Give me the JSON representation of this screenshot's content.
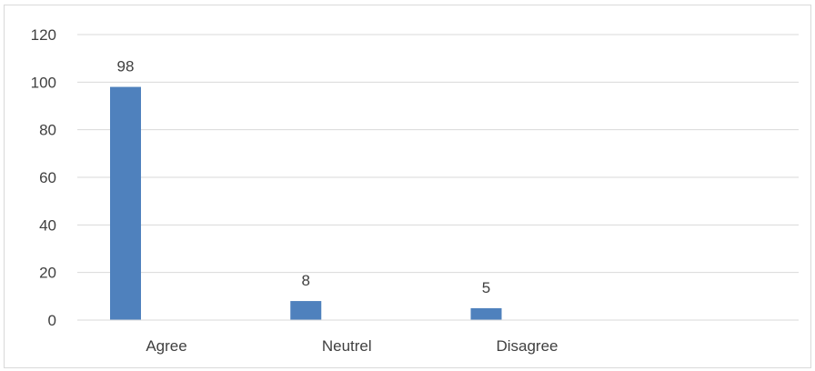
{
  "chart_data": {
    "type": "bar",
    "title": "",
    "xlabel": "",
    "ylabel": "",
    "categories": [
      "Agree",
      "Neutrel",
      "Disagree",
      ""
    ],
    "values": [
      98,
      8,
      5,
      null
    ],
    "data_labels": [
      "98",
      "8",
      "5",
      ""
    ],
    "ylim": [
      0,
      120
    ],
    "yticks": [
      0,
      20,
      40,
      60,
      80,
      100,
      120
    ],
    "ytick_labels": [
      "0",
      "20",
      "40",
      "60",
      "80",
      "100",
      "120"
    ],
    "grid": true,
    "legend": "none",
    "colors": {
      "bar": "#4f81bd",
      "grid": "#d9d9d9",
      "axis": "#d9d9d9",
      "text": "#404040"
    }
  }
}
